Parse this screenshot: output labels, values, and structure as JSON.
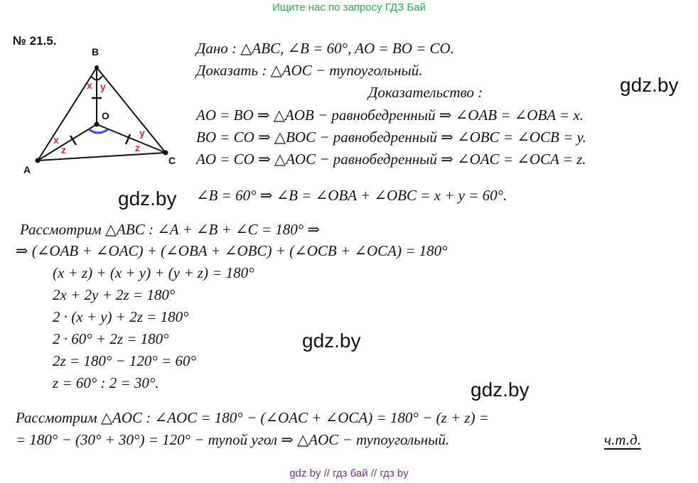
{
  "header": {
    "note": "Ищите нас по запросу ГДЗ Бай",
    "note_color": "#22b14c"
  },
  "problem": {
    "number": "№ 21.5."
  },
  "figure": {
    "points": {
      "A": "A",
      "B": "B",
      "C": "C",
      "O": "O"
    },
    "angle_labels": {
      "x_top": "x",
      "y_top": "y",
      "x_left": "x",
      "z_left": "z",
      "y_right": "y",
      "z_right": "z"
    },
    "angle_label_color": "#d9262c",
    "arc_color": "#3f48cc"
  },
  "solution": {
    "lines": [
      "Дано :   △ABC,   ∠B = 60°,   AO = BO = CO.",
      "Доказать :   △AOC − тупоугольный.",
      "Доказательство :",
      "AO = BO   ⇒   △AOB − равнобедренный   ⇒   ∠OAB = ∠OBA = x.",
      "BO = CO   ⇒   △BOC − равнобедренный   ⇒   ∠OBC = ∠OCB = y.",
      "AO = CO   ⇒   △AOC − равнобедренный   ⇒   ∠OAC = ∠OCA = z.",
      "∠B = 60°   ⇒   ∠B = ∠OBA + ∠OBC = x + y = 60°.",
      "Рассмотрим   △ABC :      ∠A + ∠B + ∠C = 180°   ⇒",
      "⇒   (∠OAB + ∠OAC) + (∠OBA + ∠OBC) + (∠OCB + ∠OCA) = 180°",
      "(x + z) + (x + y) + (y + z) = 180°",
      "2x + 2y + 2z = 180°",
      "2 · (x + y) + 2z = 180°",
      "2 · 60° + 2z = 180°",
      "2z = 180° − 120° = 60°",
      "z = 60° : 2 = 30°.",
      "Рассмотрим   △AOC :      ∠AOC = 180° − (∠OAC + ∠OCA) = 180° − (z + z) =",
      "= 180° − (30° + 30°) = 120°   − тупой   угол   ⇒   △AOC − тупоугольный."
    ],
    "qed": "ч.т.д."
  },
  "watermarks": [
    "gdz.by",
    "gdz.by",
    "gdz.by",
    "gdz.by"
  ],
  "footer": {
    "text": "gdz by  //  гдз бай  //  гдз by",
    "color": "#7030a0"
  }
}
